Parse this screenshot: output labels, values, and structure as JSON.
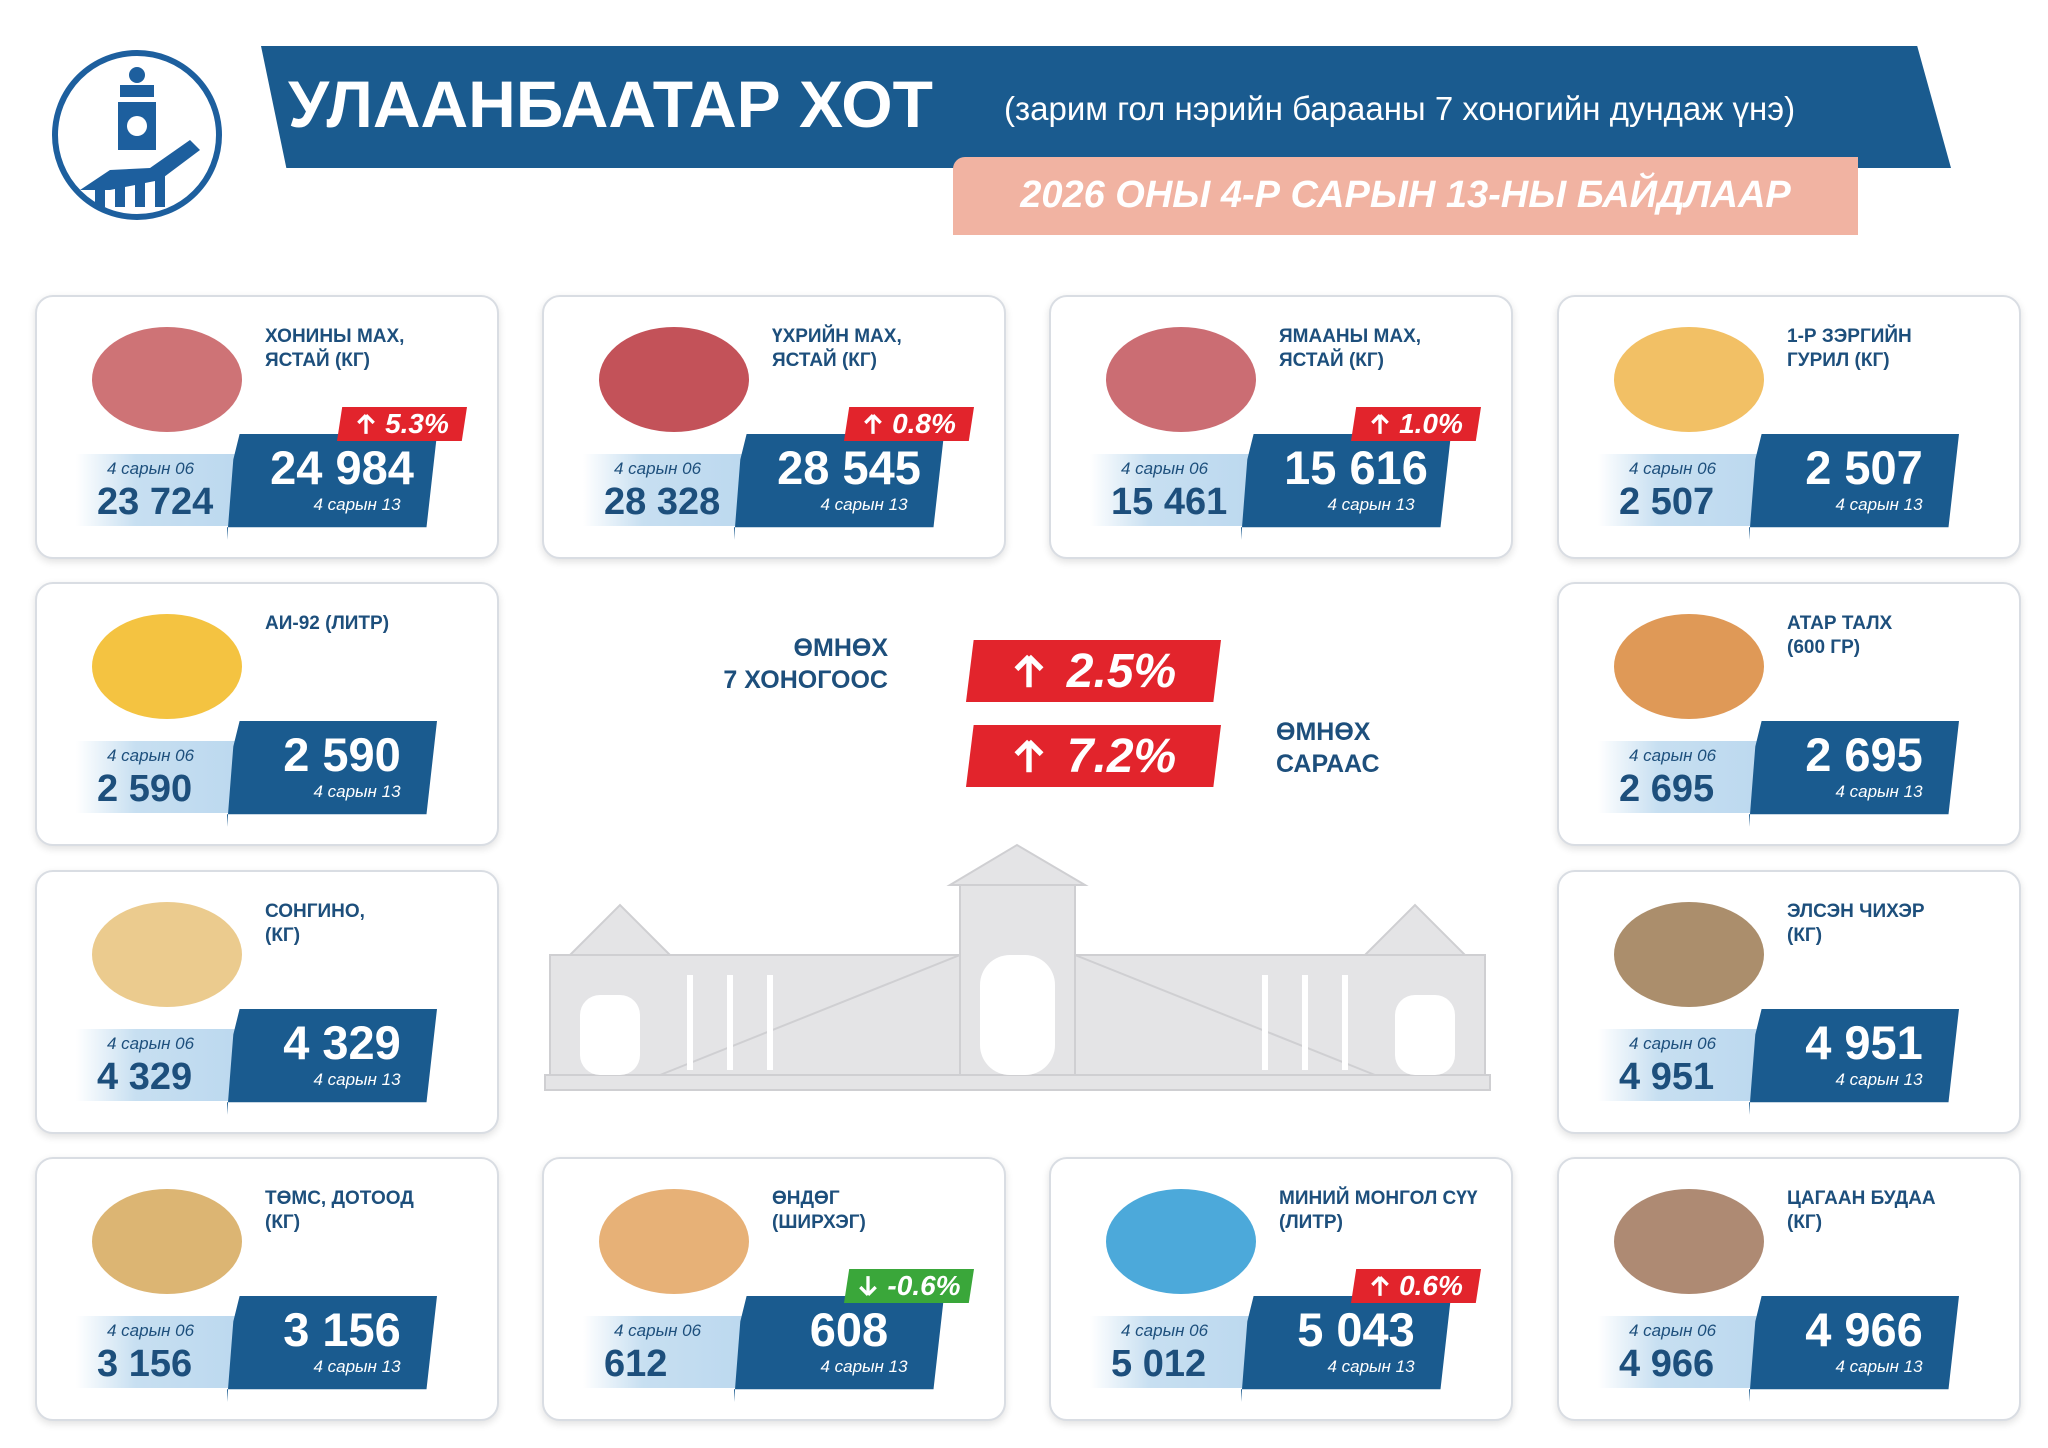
{
  "header": {
    "title": "УЛААНБААТАР ХОТ",
    "subtitle": "(зарим гол нэрийн барааны 7 хоногийн дундаж үнэ)",
    "date": "2026 ОНЫ 4-Р САРЫН 13-НЫ БАЙДЛААР"
  },
  "summary": [
    {
      "label_lines": [
        "ӨМНӨХ",
        "7 ХОНОГООС"
      ],
      "change": "2.5%",
      "trend": "up"
    },
    {
      "label_lines": [
        "ӨМНӨХ",
        "САРААС"
      ],
      "change": "7.2%",
      "trend": "up"
    }
  ],
  "items": [
    {
      "name_lines": [
        "ХОНИНЫ МАХ,",
        "ЯСТАЙ (КГ)"
      ],
      "prev_date": "4 сарын 06",
      "prev": "23 724",
      "current": "24 984",
      "current_date": "4 сарын 13",
      "change": "5.3%",
      "trend": "up"
    },
    {
      "name_lines": [
        "ҮХРИЙН МАХ,",
        "ЯСТАЙ (КГ)"
      ],
      "prev_date": "4 сарын 06",
      "prev": "28 328",
      "current": "28 545",
      "current_date": "4 сарын 13",
      "change": "0.8%",
      "trend": "up"
    },
    {
      "name_lines": [
        "ЯМААНЫ МАХ,",
        "ЯСТАЙ (КГ)"
      ],
      "prev_date": "4 сарын 06",
      "prev": "15 461",
      "current": "15 616",
      "current_date": "4 сарын 13",
      "change": "1.0%",
      "trend": "up"
    },
    {
      "name_lines": [
        "1-Р ЗЭРГИЙН",
        "ГУРИЛ (КГ)"
      ],
      "prev_date": "4 сарын 06",
      "prev": "2 507",
      "current": "2 507",
      "current_date": "4 сарын 13"
    },
    {
      "name_lines": [
        "АИ-92 (ЛИТР)"
      ],
      "prev_date": "4 сарын 06",
      "prev": "2 590",
      "current": "2 590",
      "current_date": "4 сарын 13"
    },
    {
      "name_lines": [
        "АТАР ТАЛХ",
        "(600 ГР)"
      ],
      "prev_date": "4 сарын 06",
      "prev": "2 695",
      "current": "2 695",
      "current_date": "4 сарын 13"
    },
    {
      "name_lines": [
        "СОНГИНО,",
        "(КГ)"
      ],
      "prev_date": "4 сарын 06",
      "prev": "4 329",
      "current": "4 329",
      "current_date": "4 сарын 13"
    },
    {
      "name_lines": [
        "ЭЛСЭН ЧИХЭР",
        "(КГ)"
      ],
      "prev_date": "4 сарын 06",
      "prev": "4 951",
      "current": "4 951",
      "current_date": "4 сарын 13"
    },
    {
      "name_lines": [
        "ТӨМС, ДОТООД",
        "(КГ)"
      ],
      "prev_date": "4 сарын 06",
      "prev": "3 156",
      "current": "3 156",
      "current_date": "4 сарын 13"
    },
    {
      "name_lines": [
        "ӨНДӨГ",
        "(ШИРХЭГ)"
      ],
      "prev_date": "4 сарын 06",
      "prev": "612",
      "current": "608",
      "current_date": "4 сарын 13",
      "change": "-0.6%",
      "trend": "down"
    },
    {
      "name_lines": [
        "МИНИЙ МОНГОЛ СҮҮ",
        "(ЛИТР)"
      ],
      "prev_date": "4 сарын 06",
      "prev": "5 012",
      "current": "5 043",
      "current_date": "4 сарын 13",
      "change": "0.6%",
      "trend": "up"
    },
    {
      "name_lines": [
        "ЦАГААН БУДАА",
        "(КГ)"
      ],
      "prev_date": "4 сарын 06",
      "prev": "4 966",
      "current": "4 966",
      "current_date": "4 сарын 13"
    }
  ]
}
